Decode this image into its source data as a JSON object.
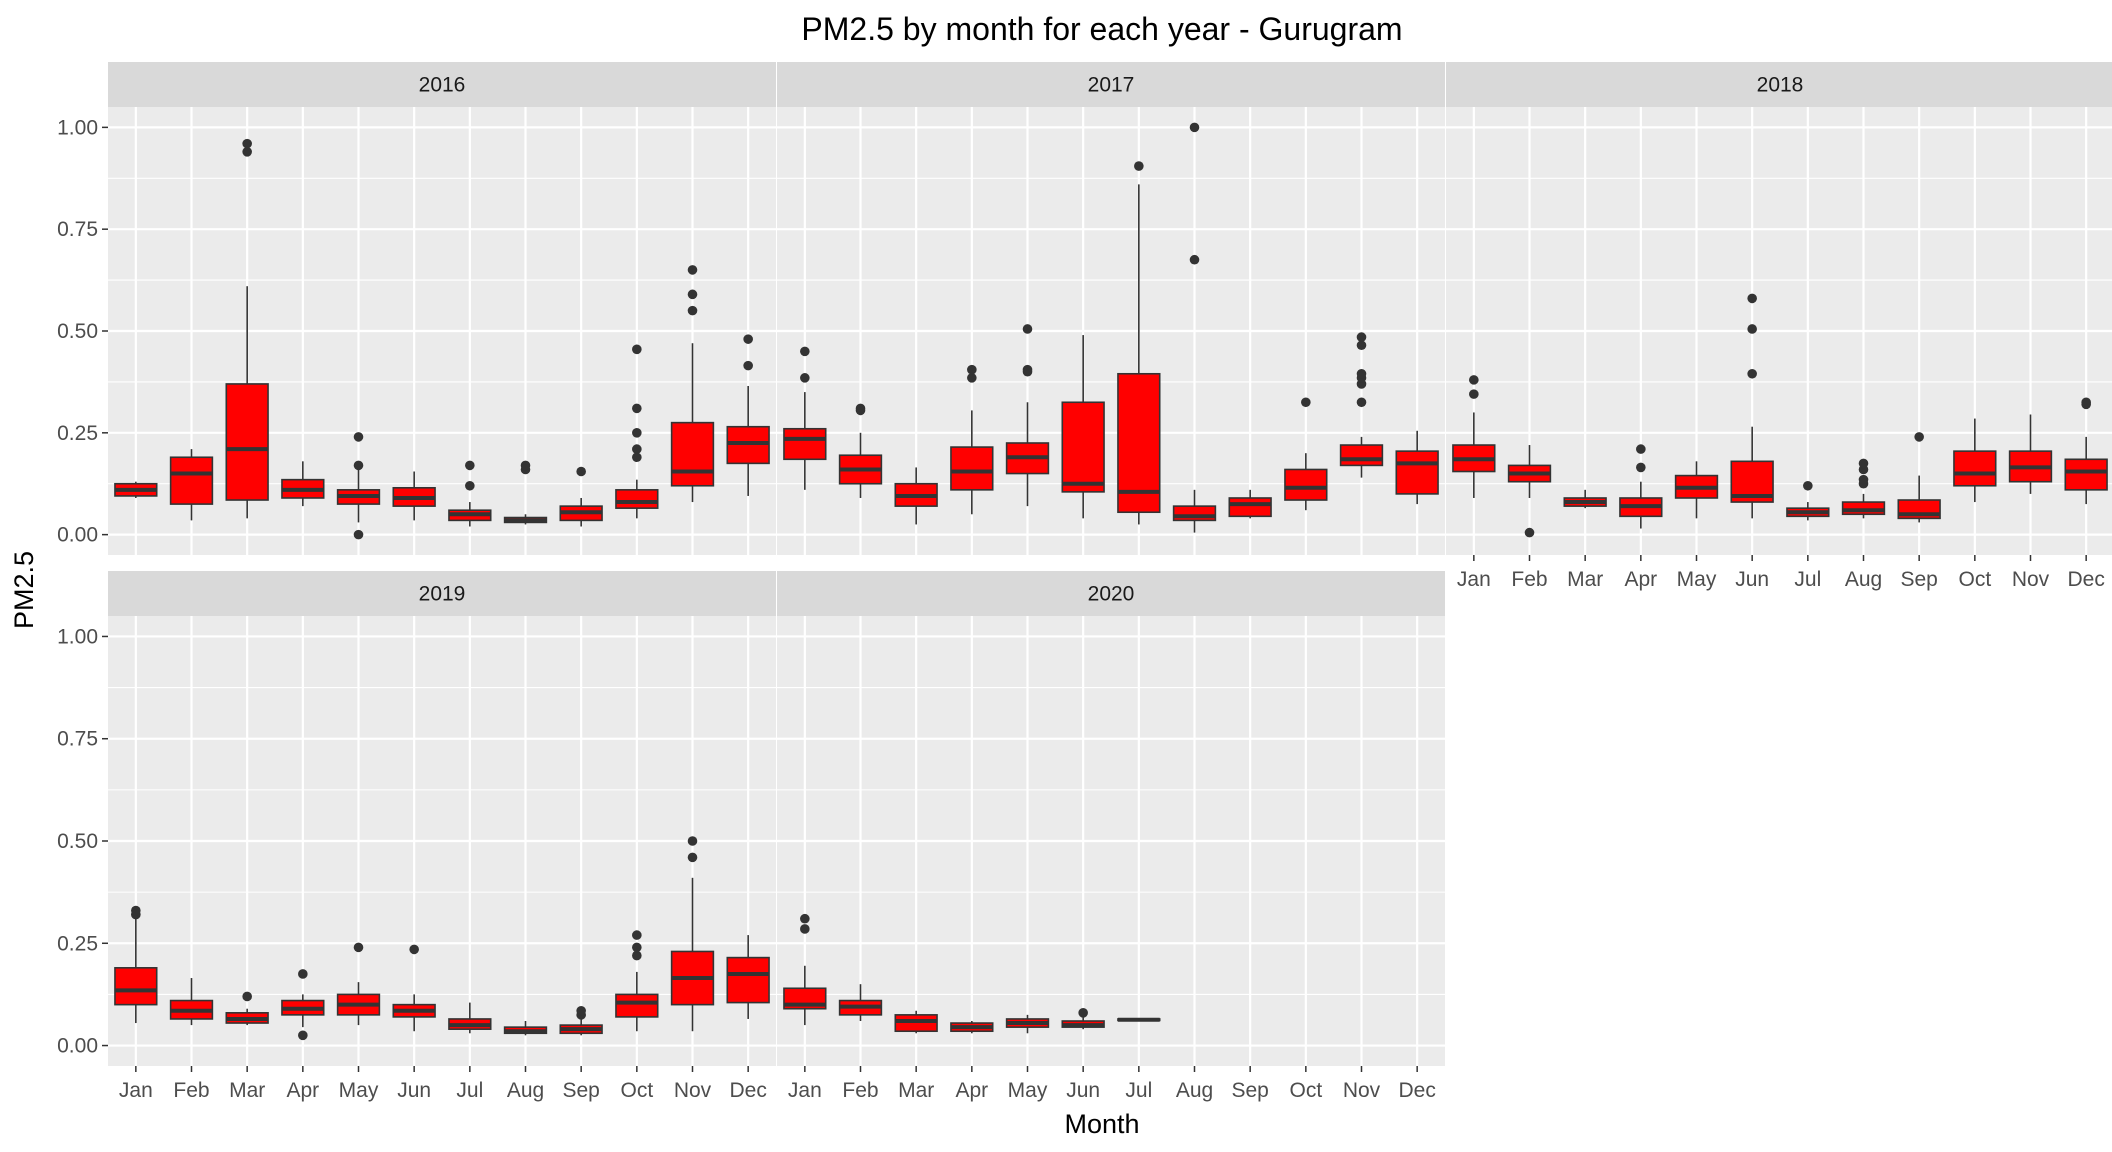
{
  "chart_data": {
    "type": "boxplot",
    "title": "PM2.5 by month for each year - Gurugram",
    "xlabel": "Month",
    "ylabel": "PM2.5",
    "ylim": [
      -0.05,
      1.05
    ],
    "yticks": [
      0,
      0.25,
      0.5,
      0.75,
      1
    ],
    "ytick_labels": [
      "0.00",
      "0.25",
      "0.50",
      "0.75",
      "1.00"
    ],
    "categories": [
      "Jan",
      "Feb",
      "Mar",
      "Apr",
      "May",
      "Jun",
      "Jul",
      "Aug",
      "Sep",
      "Oct",
      "Nov",
      "Dec"
    ],
    "grid": true,
    "legend": "none",
    "colors": {
      "box_fill": "#ff0000",
      "box_line": "#333333",
      "panel_bg": "#ebebeb",
      "strip_bg": "#d9d9d9",
      "grid": "#ffffff"
    },
    "facets": [
      {
        "label": "2016",
        "boxes": [
          {
            "month": "Jan",
            "min": 0.09,
            "q1": 0.095,
            "median": 0.11,
            "q3": 0.125,
            "max": 0.13,
            "outliers": []
          },
          {
            "month": "Feb",
            "min": 0.035,
            "q1": 0.075,
            "median": 0.15,
            "q3": 0.19,
            "max": 0.21,
            "outliers": []
          },
          {
            "month": "Mar",
            "min": 0.04,
            "q1": 0.085,
            "median": 0.21,
            "q3": 0.37,
            "max": 0.61,
            "outliers": [
              0.94,
              0.96
            ]
          },
          {
            "month": "Apr",
            "min": 0.07,
            "q1": 0.09,
            "median": 0.11,
            "q3": 0.135,
            "max": 0.18,
            "outliers": []
          },
          {
            "month": "May",
            "min": 0.03,
            "q1": 0.075,
            "median": 0.095,
            "q3": 0.11,
            "max": 0.16,
            "outliers": [
              0.0,
              0.17,
              0.24
            ]
          },
          {
            "month": "Jun",
            "min": 0.035,
            "q1": 0.07,
            "median": 0.09,
            "q3": 0.115,
            "max": 0.155,
            "outliers": []
          },
          {
            "month": "Jul",
            "min": 0.02,
            "q1": 0.035,
            "median": 0.05,
            "q3": 0.06,
            "max": 0.08,
            "outliers": [
              0.12,
              0.17
            ]
          },
          {
            "month": "Aug",
            "min": 0.025,
            "q1": 0.03,
            "median": 0.035,
            "q3": 0.042,
            "max": 0.05,
            "outliers": [
              0.16,
              0.17
            ]
          },
          {
            "month": "Sep",
            "min": 0.02,
            "q1": 0.035,
            "median": 0.055,
            "q3": 0.07,
            "max": 0.09,
            "outliers": [
              0.155
            ]
          },
          {
            "month": "Oct",
            "min": 0.04,
            "q1": 0.065,
            "median": 0.08,
            "q3": 0.11,
            "max": 0.135,
            "outliers": [
              0.19,
              0.21,
              0.25,
              0.31,
              0.455
            ]
          },
          {
            "month": "Nov",
            "min": 0.08,
            "q1": 0.12,
            "median": 0.155,
            "q3": 0.275,
            "max": 0.47,
            "outliers": [
              0.55,
              0.59,
              0.65
            ]
          },
          {
            "month": "Dec",
            "min": 0.095,
            "q1": 0.175,
            "median": 0.225,
            "q3": 0.265,
            "max": 0.365,
            "outliers": [
              0.415,
              0.48
            ]
          }
        ]
      },
      {
        "label": "2017",
        "boxes": [
          {
            "month": "Jan",
            "min": 0.11,
            "q1": 0.185,
            "median": 0.235,
            "q3": 0.26,
            "max": 0.35,
            "outliers": [
              0.385,
              0.45
            ]
          },
          {
            "month": "Feb",
            "min": 0.09,
            "q1": 0.125,
            "median": 0.16,
            "q3": 0.195,
            "max": 0.25,
            "outliers": [
              0.305,
              0.31
            ]
          },
          {
            "month": "Mar",
            "min": 0.025,
            "q1": 0.07,
            "median": 0.095,
            "q3": 0.125,
            "max": 0.165,
            "outliers": []
          },
          {
            "month": "Apr",
            "min": 0.05,
            "q1": 0.11,
            "median": 0.155,
            "q3": 0.215,
            "max": 0.305,
            "outliers": [
              0.385,
              0.405
            ]
          },
          {
            "month": "May",
            "min": 0.07,
            "q1": 0.15,
            "median": 0.19,
            "q3": 0.225,
            "max": 0.325,
            "outliers": [
              0.4,
              0.405,
              0.505
            ]
          },
          {
            "month": "Jun",
            "min": 0.04,
            "q1": 0.105,
            "median": 0.125,
            "q3": 0.325,
            "max": 0.49,
            "outliers": []
          },
          {
            "month": "Jul",
            "min": 0.025,
            "q1": 0.055,
            "median": 0.105,
            "q3": 0.395,
            "max": 0.86,
            "outliers": [
              0.905
            ]
          },
          {
            "month": "Aug",
            "min": 0.005,
            "q1": 0.035,
            "median": 0.045,
            "q3": 0.07,
            "max": 0.11,
            "outliers": [
              0.675,
              1.0
            ]
          },
          {
            "month": "Sep",
            "min": 0.04,
            "q1": 0.045,
            "median": 0.075,
            "q3": 0.09,
            "max": 0.11,
            "outliers": []
          },
          {
            "month": "Oct",
            "min": 0.06,
            "q1": 0.085,
            "median": 0.115,
            "q3": 0.16,
            "max": 0.2,
            "outliers": [
              0.325
            ]
          },
          {
            "month": "Nov",
            "min": 0.14,
            "q1": 0.17,
            "median": 0.185,
            "q3": 0.22,
            "max": 0.24,
            "outliers": [
              0.325,
              0.37,
              0.385,
              0.395,
              0.465,
              0.485
            ]
          },
          {
            "month": "Dec",
            "min": 0.075,
            "q1": 0.1,
            "median": 0.175,
            "q3": 0.205,
            "max": 0.255,
            "outliers": []
          }
        ]
      },
      {
        "label": "2018",
        "boxes": [
          {
            "month": "Jan",
            "min": 0.09,
            "q1": 0.155,
            "median": 0.185,
            "q3": 0.22,
            "max": 0.3,
            "outliers": [
              0.345,
              0.38
            ]
          },
          {
            "month": "Feb",
            "min": 0.09,
            "q1": 0.13,
            "median": 0.15,
            "q3": 0.17,
            "max": 0.22,
            "outliers": [
              0.005
            ]
          },
          {
            "month": "Mar",
            "min": 0.065,
            "q1": 0.07,
            "median": 0.08,
            "q3": 0.09,
            "max": 0.11,
            "outliers": []
          },
          {
            "month": "Apr",
            "min": 0.015,
            "q1": 0.045,
            "median": 0.07,
            "q3": 0.09,
            "max": 0.13,
            "outliers": [
              0.165,
              0.21
            ]
          },
          {
            "month": "May",
            "min": 0.04,
            "q1": 0.09,
            "median": 0.115,
            "q3": 0.145,
            "max": 0.18,
            "outliers": []
          },
          {
            "month": "Jun",
            "min": 0.04,
            "q1": 0.08,
            "median": 0.095,
            "q3": 0.18,
            "max": 0.265,
            "outliers": [
              0.395,
              0.505,
              0.58
            ]
          },
          {
            "month": "Jul",
            "min": 0.035,
            "q1": 0.045,
            "median": 0.055,
            "q3": 0.065,
            "max": 0.08,
            "outliers": [
              0.12
            ]
          },
          {
            "month": "Aug",
            "min": 0.04,
            "q1": 0.05,
            "median": 0.06,
            "q3": 0.08,
            "max": 0.1,
            "outliers": [
              0.125,
              0.135,
              0.16,
              0.175
            ]
          },
          {
            "month": "Sep",
            "min": 0.03,
            "q1": 0.04,
            "median": 0.05,
            "q3": 0.085,
            "max": 0.145,
            "outliers": [
              0.24
            ]
          },
          {
            "month": "Oct",
            "min": 0.08,
            "q1": 0.12,
            "median": 0.15,
            "q3": 0.205,
            "max": 0.285,
            "outliers": []
          },
          {
            "month": "Nov",
            "min": 0.1,
            "q1": 0.13,
            "median": 0.165,
            "q3": 0.205,
            "max": 0.295,
            "outliers": []
          },
          {
            "month": "Dec",
            "min": 0.075,
            "q1": 0.11,
            "median": 0.155,
            "q3": 0.185,
            "max": 0.24,
            "outliers": [
              0.32,
              0.325
            ]
          }
        ]
      },
      {
        "label": "2019",
        "boxes": [
          {
            "month": "Jan",
            "min": 0.055,
            "q1": 0.1,
            "median": 0.135,
            "q3": 0.19,
            "max": 0.31,
            "outliers": [
              0.32,
              0.33
            ]
          },
          {
            "month": "Feb",
            "min": 0.05,
            "q1": 0.065,
            "median": 0.085,
            "q3": 0.11,
            "max": 0.165,
            "outliers": []
          },
          {
            "month": "Mar",
            "min": 0.05,
            "q1": 0.055,
            "median": 0.065,
            "q3": 0.08,
            "max": 0.09,
            "outliers": [
              0.12
            ]
          },
          {
            "month": "Apr",
            "min": 0.045,
            "q1": 0.075,
            "median": 0.09,
            "q3": 0.11,
            "max": 0.125,
            "outliers": [
              0.025,
              0.175
            ]
          },
          {
            "month": "May",
            "min": 0.05,
            "q1": 0.075,
            "median": 0.1,
            "q3": 0.125,
            "max": 0.155,
            "outliers": [
              0.24
            ]
          },
          {
            "month": "Jun",
            "min": 0.035,
            "q1": 0.07,
            "median": 0.085,
            "q3": 0.1,
            "max": 0.125,
            "outliers": [
              0.235
            ]
          },
          {
            "month": "Jul",
            "min": 0.03,
            "q1": 0.04,
            "median": 0.05,
            "q3": 0.065,
            "max": 0.105,
            "outliers": []
          },
          {
            "month": "Aug",
            "min": 0.025,
            "q1": 0.03,
            "median": 0.035,
            "q3": 0.045,
            "max": 0.06,
            "outliers": []
          },
          {
            "month": "Sep",
            "min": 0.025,
            "q1": 0.03,
            "median": 0.04,
            "q3": 0.05,
            "max": 0.065,
            "outliers": [
              0.075,
              0.085
            ]
          },
          {
            "month": "Oct",
            "min": 0.035,
            "q1": 0.07,
            "median": 0.105,
            "q3": 0.125,
            "max": 0.18,
            "outliers": [
              0.22,
              0.24,
              0.27
            ]
          },
          {
            "month": "Nov",
            "min": 0.035,
            "q1": 0.1,
            "median": 0.165,
            "q3": 0.23,
            "max": 0.41,
            "outliers": [
              0.46,
              0.5
            ]
          },
          {
            "month": "Dec",
            "min": 0.065,
            "q1": 0.105,
            "median": 0.175,
            "q3": 0.215,
            "max": 0.27,
            "outliers": []
          }
        ]
      },
      {
        "label": "2020",
        "boxes": [
          {
            "month": "Jan",
            "min": 0.05,
            "q1": 0.09,
            "median": 0.1,
            "q3": 0.14,
            "max": 0.195,
            "outliers": [
              0.285,
              0.31
            ]
          },
          {
            "month": "Feb",
            "min": 0.06,
            "q1": 0.075,
            "median": 0.095,
            "q3": 0.11,
            "max": 0.15,
            "outliers": []
          },
          {
            "month": "Mar",
            "min": 0.03,
            "q1": 0.035,
            "median": 0.06,
            "q3": 0.075,
            "max": 0.085,
            "outliers": []
          },
          {
            "month": "Apr",
            "min": 0.03,
            "q1": 0.035,
            "median": 0.045,
            "q3": 0.055,
            "max": 0.06,
            "outliers": []
          },
          {
            "month": "May",
            "min": 0.03,
            "q1": 0.045,
            "median": 0.055,
            "q3": 0.065,
            "max": 0.075,
            "outliers": []
          },
          {
            "month": "Jun",
            "min": 0.04,
            "q1": 0.045,
            "median": 0.05,
            "q3": 0.06,
            "max": 0.07,
            "outliers": [
              0.08
            ]
          },
          {
            "month": "Jul",
            "min": 0.06,
            "q1": 0.062,
            "median": 0.063,
            "q3": 0.065,
            "max": 0.066,
            "outliers": []
          }
        ]
      }
    ]
  }
}
